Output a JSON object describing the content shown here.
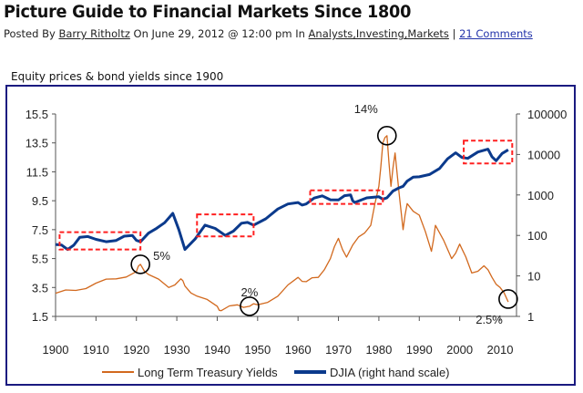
{
  "post": {
    "title": "Picture Guide to Financial Markets Since 1800",
    "posted_by": "Posted By",
    "author": "Barry Ritholtz",
    "on_date": "On June 29, 2012 @ 12:00 pm In",
    "categories": "Analysts,Investing,Markets",
    "separator": "|",
    "comments": "21 Comments"
  },
  "chart_data": {
    "type": "line",
    "title": "Equity prices & bond yields since 1900",
    "x_ticks": [
      1900,
      1910,
      1920,
      1930,
      1940,
      1950,
      1960,
      1970,
      1980,
      1990,
      2000,
      2010
    ],
    "xlim": [
      1900,
      2013
    ],
    "left_ticks": [
      "15.5",
      "13.5",
      "11.5",
      "9.5",
      "7.5",
      "5.5",
      "3.5",
      "1.5"
    ],
    "ylim_left": [
      1.5,
      15.5
    ],
    "right_ticks": [
      "100000",
      "10000",
      "1000",
      "100",
      "10",
      "1"
    ],
    "ylim_right": [
      1,
      100000
    ],
    "right_scale": "log",
    "grid": false,
    "legend_placement": "bottom",
    "series": [
      {
        "name": "Long Term Treasury Yields",
        "axis": "left",
        "color": "#d2691e",
        "x": [
          1900,
          1905,
          1910,
          1915,
          1920,
          1921,
          1923,
          1928,
          1931,
          1932,
          1935,
          1940,
          1941,
          1945,
          1948,
          1950,
          1955,
          1960,
          1962,
          1965,
          1968,
          1970,
          1972,
          1975,
          1978,
          1980,
          1981,
          1982,
          1983,
          1984,
          1986,
          1987,
          1990,
          1993,
          1994,
          1998,
          2000,
          2003,
          2006,
          2008,
          2010,
          2012
        ],
        "values": [
          3.1,
          3.3,
          3.8,
          4.1,
          4.6,
          5.1,
          4.4,
          3.5,
          4.1,
          3.6,
          2.9,
          2.2,
          1.9,
          2.3,
          2.2,
          2.3,
          2.9,
          4.2,
          3.9,
          4.2,
          5.5,
          6.9,
          5.6,
          7.0,
          7.8,
          10.5,
          13.5,
          14.0,
          10.5,
          12.8,
          7.5,
          9.3,
          8.5,
          6.0,
          7.8,
          5.5,
          6.5,
          4.5,
          5.0,
          4.2,
          3.5,
          2.5
        ]
      },
      {
        "name": "DJIA (right hand scale)",
        "axis": "right",
        "color": "#0b3a8c",
        "x": [
          1900,
          1903,
          1906,
          1910,
          1915,
          1919,
          1921,
          1925,
          1929,
          1932,
          1937,
          1942,
          1946,
          1949,
          1955,
          1960,
          1962,
          1966,
          1970,
          1973,
          1974,
          1980,
          1982,
          1985,
          1987,
          1990,
          1995,
          1999,
          2002,
          2007,
          2009,
          2012
        ],
        "values": [
          60,
          45,
          90,
          80,
          75,
          100,
          70,
          150,
          350,
          45,
          180,
          100,
          200,
          180,
          450,
          650,
          600,
          950,
          750,
          1000,
          650,
          900,
          850,
          1500,
          2200,
          2800,
          4500,
          11000,
          8000,
          13500,
          7000,
          13000
        ]
      }
    ],
    "annotations": [
      {
        "label": "5%",
        "x": 1921,
        "y": 5.1
      },
      {
        "label": "2%",
        "x": 1948,
        "y": 2.2
      },
      {
        "label": "14%",
        "x": 1982,
        "y": 14.0
      },
      {
        "label": "2.5%",
        "x": 2012,
        "y": 2.7
      }
    ],
    "highlight_boxes": [
      {
        "x": [
          1901,
          1921
        ],
        "djia": [
          45,
          120
        ]
      },
      {
        "x": [
          1935,
          1949
        ],
        "djia": [
          95,
          330
        ]
      },
      {
        "x": [
          1963,
          1981
        ],
        "djia": [
          600,
          1300
        ]
      },
      {
        "x": [
          2001,
          2013
        ],
        "djia": [
          6000,
          22000
        ]
      }
    ],
    "colors": {
      "frame": "#1a1a80",
      "highlight": "#ff2020"
    }
  }
}
